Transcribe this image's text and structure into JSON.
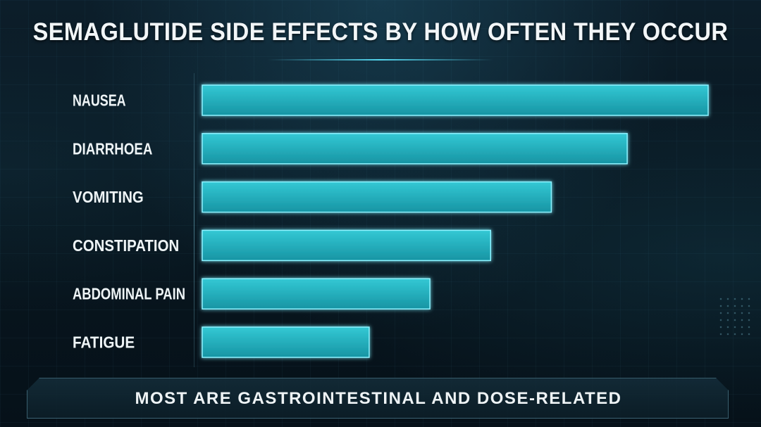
{
  "title": "SEMAGLUTIDE SIDE EFFECTS BY HOW OFTEN THEY OCCUR",
  "footer": "MOST ARE GASTROINTESTINAL AND DOSE-RELATED",
  "colors": {
    "bar_fill_top": "#2ec3cf",
    "bar_fill_bottom": "#1a97a6",
    "bar_border": "#8ef2ff",
    "background": "#07131c",
    "text": "#eef4f6"
  },
  "chart_data": {
    "type": "bar",
    "orientation": "horizontal",
    "title": "SEMAGLUTIDE SIDE EFFECTS BY HOW OFTEN THEY OCCUR",
    "categories": [
      "NAUSEA",
      "DIARRHOEA",
      "VOMITING",
      "CONSTIPATION",
      "ABDOMINAL PAIN",
      "FATIGUE"
    ],
    "values": [
      100,
      84,
      69,
      57,
      45,
      33
    ],
    "xlabel": "",
    "ylabel": "",
    "xlim": [
      0,
      100
    ],
    "grid": false,
    "legend": "none"
  }
}
